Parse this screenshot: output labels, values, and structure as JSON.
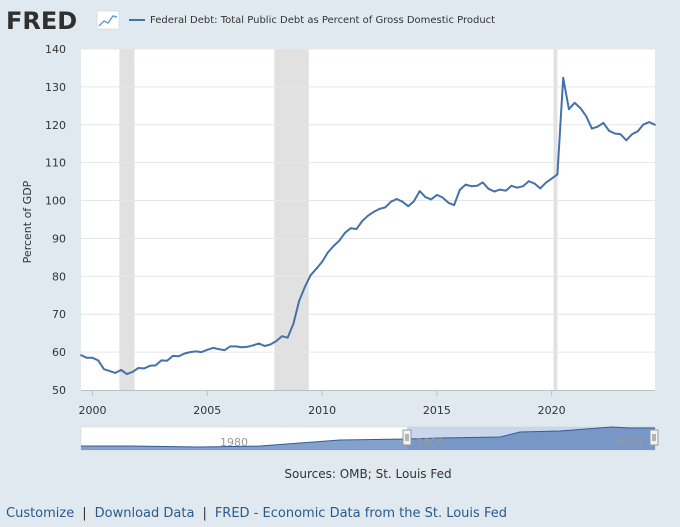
{
  "header": {
    "logo_text": "FRED"
  },
  "chart_data": {
    "type": "line",
    "legend_position": "top-left",
    "grid": true,
    "ylabel": "Percent of GDP",
    "xlim": [
      1999.5,
      2024.5
    ],
    "ylim": [
      50,
      140
    ],
    "yticks": [
      50,
      60,
      70,
      80,
      90,
      100,
      110,
      120,
      130,
      140
    ],
    "xticks": [
      "2000",
      "2005",
      "2010",
      "2015",
      "2020"
    ],
    "recessions": [
      [
        2001.17,
        2001.83
      ],
      [
        2007.92,
        2009.42
      ],
      [
        2020.08,
        2020.25
      ]
    ],
    "series": [
      {
        "name": "Federal Debt: Total Public Debt as Percent of Gross Domestic Product",
        "color": "#4572a7",
        "x": [
          1999.5,
          1999.75,
          2000.0,
          2000.25,
          2000.5,
          2000.75,
          2001.0,
          2001.25,
          2001.5,
          2001.75,
          2002.0,
          2002.25,
          2002.5,
          2002.75,
          2003.0,
          2003.25,
          2003.5,
          2003.75,
          2004.0,
          2004.25,
          2004.5,
          2004.75,
          2005.0,
          2005.25,
          2005.5,
          2005.75,
          2006.0,
          2006.25,
          2006.5,
          2006.75,
          2007.0,
          2007.25,
          2007.5,
          2007.75,
          2008.0,
          2008.25,
          2008.5,
          2008.75,
          2009.0,
          2009.25,
          2009.5,
          2009.75,
          2010.0,
          2010.25,
          2010.5,
          2010.75,
          2011.0,
          2011.25,
          2011.5,
          2011.75,
          2012.0,
          2012.25,
          2012.5,
          2012.75,
          2013.0,
          2013.25,
          2013.5,
          2013.75,
          2014.0,
          2014.25,
          2014.5,
          2014.75,
          2015.0,
          2015.25,
          2015.5,
          2015.75,
          2016.0,
          2016.25,
          2016.5,
          2016.75,
          2017.0,
          2017.25,
          2017.5,
          2017.75,
          2018.0,
          2018.25,
          2018.5,
          2018.75,
          2019.0,
          2019.25,
          2019.5,
          2019.75,
          2020.0,
          2020.25,
          2020.5,
          2020.75,
          2021.0,
          2021.25,
          2021.5,
          2021.75,
          2022.0,
          2022.25,
          2022.5,
          2022.75,
          2023.0,
          2023.25,
          2023.5,
          2023.75,
          2024.0,
          2024.25,
          2024.5
        ],
        "values": [
          59.2,
          58.5,
          58.5,
          57.8,
          55.5,
          55.0,
          54.5,
          55.3,
          54.2,
          54.8,
          55.8,
          55.7,
          56.4,
          56.5,
          57.8,
          57.7,
          59.0,
          58.9,
          59.6,
          60.0,
          60.2,
          60.0,
          60.6,
          61.1,
          60.8,
          60.5,
          61.5,
          61.5,
          61.3,
          61.4,
          61.8,
          62.3,
          61.6,
          62.0,
          62.9,
          64.2,
          63.8,
          67.5,
          73.5,
          77.2,
          80.3,
          82.0,
          83.8,
          86.3,
          88.0,
          89.4,
          91.5,
          92.7,
          92.5,
          94.6,
          96.0,
          97.0,
          97.8,
          98.2,
          99.7,
          100.4,
          99.7,
          98.5,
          99.8,
          102.5,
          100.9,
          100.3,
          101.5,
          100.8,
          99.4,
          98.8,
          102.8,
          104.2,
          103.8,
          103.9,
          104.8,
          103.1,
          102.4,
          102.9,
          102.6,
          103.9,
          103.4,
          103.8,
          105.1,
          104.5,
          103.2,
          104.7,
          105.8,
          106.9,
          132.4,
          124.1,
          125.8,
          124.4,
          122.3,
          119.0,
          119.5,
          120.5,
          118.4,
          117.7,
          117.5,
          115.9,
          117.5,
          118.3,
          120.1,
          120.7,
          120.0
        ]
      }
    ]
  },
  "navigator": {
    "labels": [
      "1980",
      "2000",
      "2020"
    ]
  },
  "sources": "Sources: OMB; St. Louis Fed",
  "footer": {
    "links": [
      "Customize",
      "Download Data",
      "FRED - Economic Data from the St. Louis Fed"
    ],
    "separator": "|"
  }
}
